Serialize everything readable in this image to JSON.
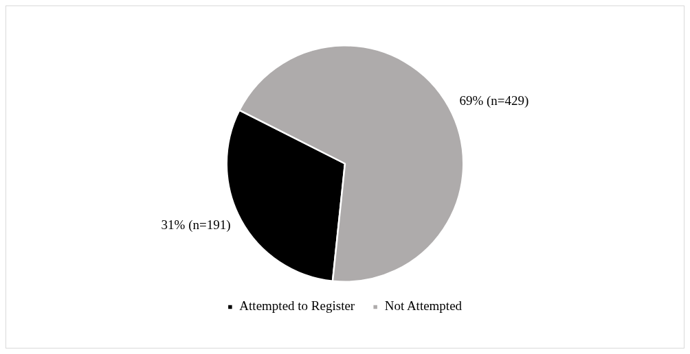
{
  "chart_data": {
    "type": "pie",
    "categories": [
      "Attempted to Register",
      "Not Attempted"
    ],
    "values": [
      191,
      429
    ],
    "colors": [
      "#000000",
      "#aeabab"
    ],
    "value_labels": [
      "31% (n=191)",
      "69% (n=429)"
    ],
    "legend": "bottom"
  }
}
